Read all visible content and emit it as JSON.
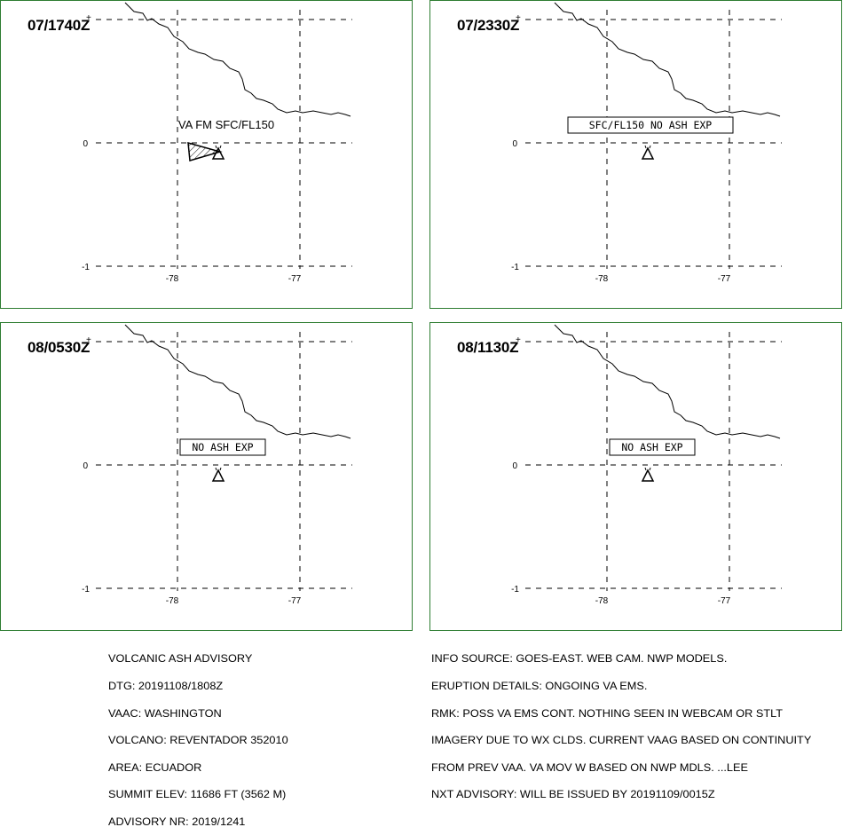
{
  "panels": [
    {
      "time": "07/1740Z",
      "label": "VA FM SFC/FL150",
      "label_boxed": false,
      "show_ash_polygon": true
    },
    {
      "time": "07/2330Z",
      "label": "SFC/FL150 NO ASH EXP",
      "label_boxed": true,
      "show_ash_polygon": false
    },
    {
      "time": "08/0530Z",
      "label": "NO ASH EXP",
      "label_boxed": true,
      "show_ash_polygon": false
    },
    {
      "time": "08/1130Z",
      "label": "NO ASH EXP",
      "label_boxed": true,
      "show_ash_polygon": false
    }
  ],
  "axis": {
    "lat_ticks": [
      "0",
      "-1"
    ],
    "lon_ticks": [
      "-78",
      "-77"
    ]
  },
  "advisory_left": [
    "VOLCANIC ASH ADVISORY",
    "DTG: 20191108/1808Z",
    "VAAC: WASHINGTON",
    "VOLCANO: REVENTADOR 352010",
    "AREA: ECUADOR",
    "SUMMIT ELEV: 11686 FT (3562 M)",
    "ADVISORY NR: 2019/1241"
  ],
  "advisory_right": [
    "INFO SOURCE: GOES-EAST. WEB CAM. NWP MODELS.",
    "ERUPTION DETAILS: ONGOING VA EMS.",
    "RMK: POSS VA EMS CONT. NOTHING SEEN IN WEBCAM OR STLT",
    "IMAGERY DUE TO WX CLDS. CURRENT VAAG BASED ON CONTINUITY",
    "FROM PREV VAA. VA MOV W BASED ON NWP MDLS. ...LEE",
    "NXT ADVISORY: WILL BE ISSUED BY 20191109/0015Z"
  ],
  "colors": {
    "border": "#2e7d32"
  },
  "icons": {
    "volcano": "volcano-triangle-icon"
  }
}
